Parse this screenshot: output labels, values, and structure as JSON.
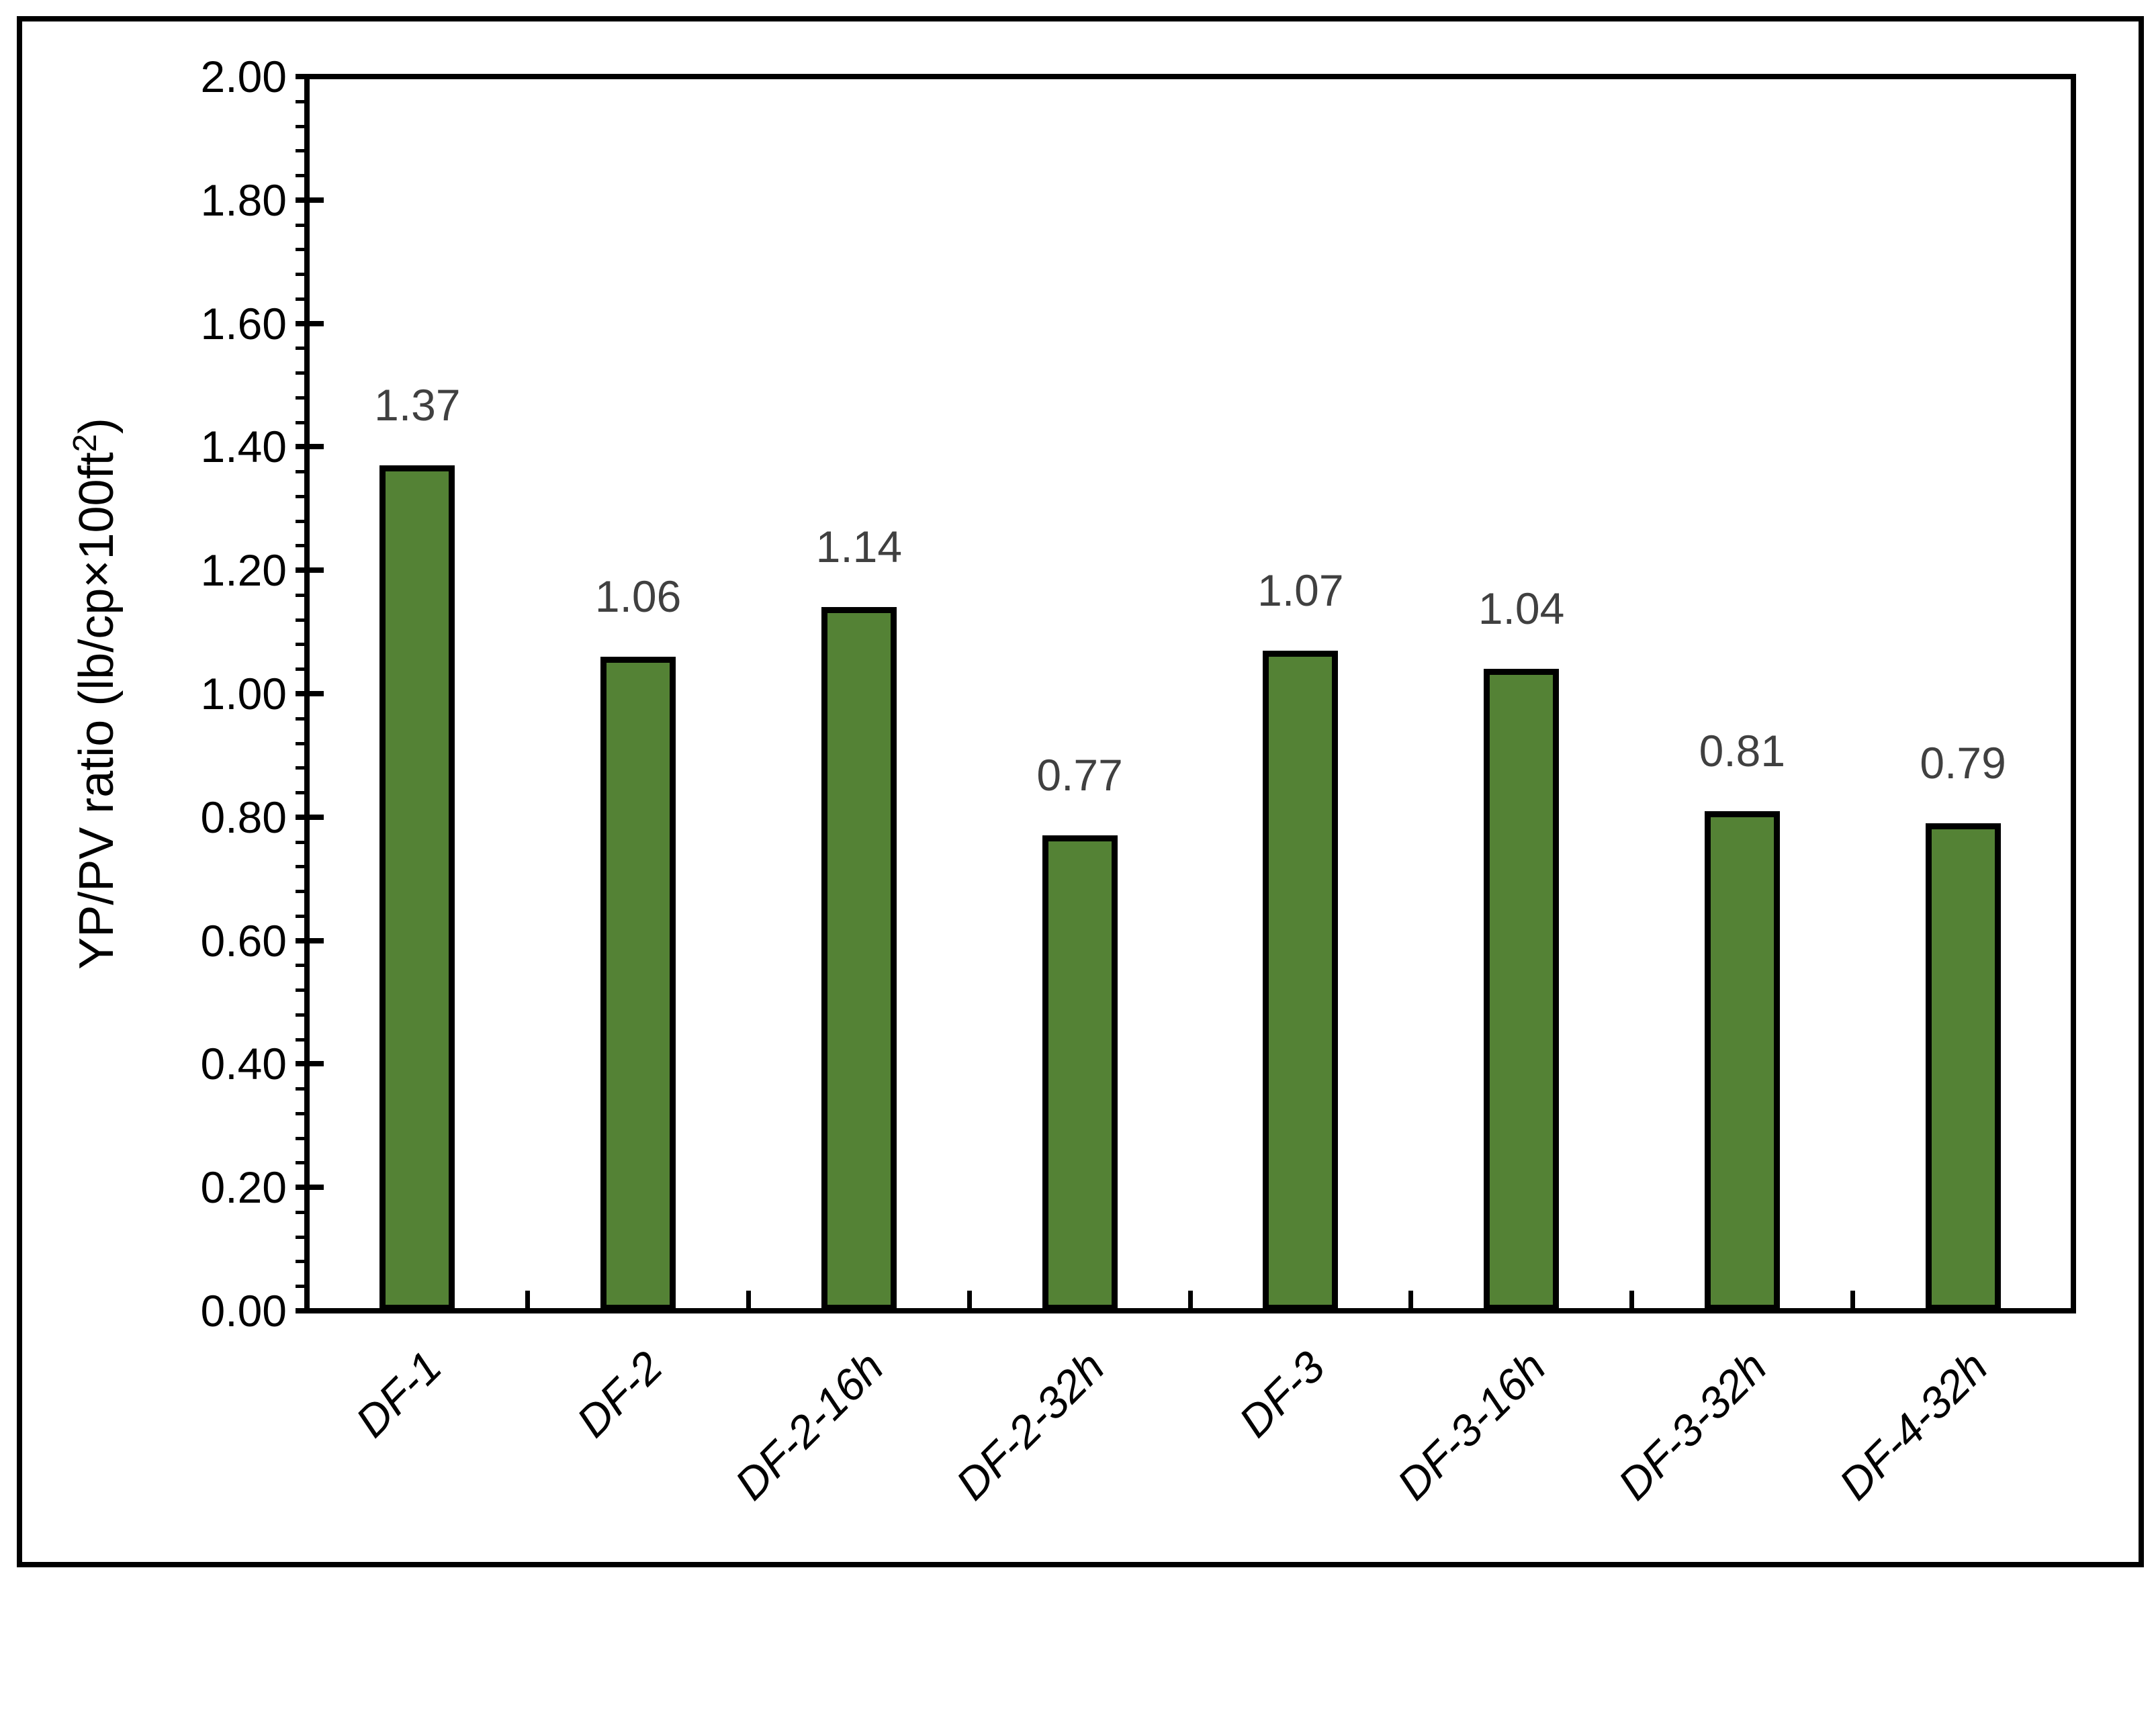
{
  "chart_data": {
    "type": "bar",
    "title": "",
    "categories": [
      "DF-1",
      "DF-2",
      "DF-2-16h",
      "DF-2-32h",
      "DF-3",
      "DF-3-16h",
      "DF-3-32h",
      "DF-4-32h"
    ],
    "values": [
      1.37,
      1.06,
      1.14,
      0.77,
      1.07,
      1.04,
      0.81,
      0.79
    ],
    "data_labels": [
      "1.37",
      "1.06",
      "1.14",
      "0.77",
      "1.07",
      "1.04",
      "0.81",
      "0.79"
    ],
    "ylabel": "YP/PV ratio (lb/cp×100ft²)",
    "ylabel_parts": {
      "base": "YP/PV ratio (lb/cp×100ft",
      "sup": "2",
      "close": ")"
    },
    "xlabel": "",
    "ylim": [
      0,
      2
    ],
    "y_major_step": 0.2,
    "y_minor_step": 0.04,
    "y_tick_labels": [
      "0.00",
      "0.20",
      "0.40",
      "0.60",
      "0.80",
      "1.00",
      "1.20",
      "1.40",
      "1.60",
      "1.80",
      "2.00"
    ],
    "grid": false,
    "legend": false,
    "bar_outline": true,
    "colors": {
      "bar_fill": "#548235",
      "bar_border": "#000000",
      "axis": "#000000",
      "tick_label": "#000000",
      "data_label": "#404040",
      "category_label": "#000000",
      "background": "#FFFFFF"
    }
  }
}
